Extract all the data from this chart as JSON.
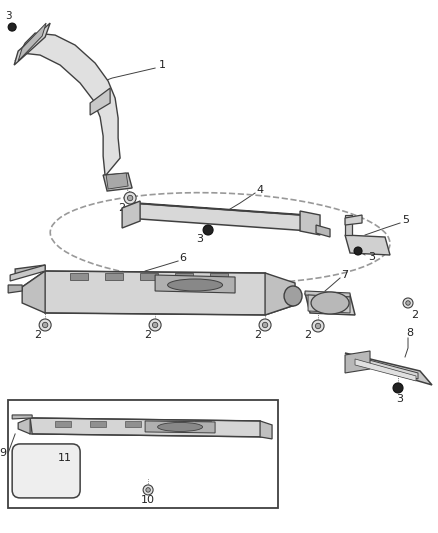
{
  "bg_color": "#ffffff",
  "line_color": "#404040",
  "dashed_color": "#999999",
  "text_color": "#222222",
  "figsize": [
    4.38,
    5.33
  ],
  "dpi": 100
}
